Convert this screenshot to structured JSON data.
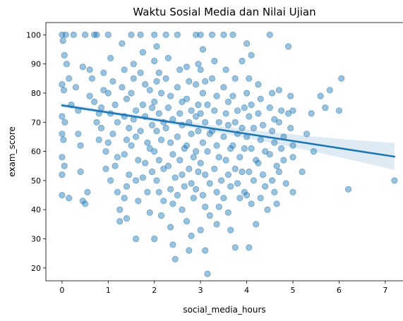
{
  "chart_data": {
    "type": "scatter",
    "title": "Waktu Sosial Media dan Nilai Ujian",
    "xlabel": "social_media_hours",
    "ylabel": "exam_score",
    "xlim": [
      -0.35,
      7.4
    ],
    "ylim": [
      15.6,
      104.2
    ],
    "xticks": [
      0,
      1,
      2,
      3,
      4,
      5,
      6,
      7
    ],
    "yticks": [
      20,
      30,
      40,
      50,
      60,
      70,
      80,
      90,
      100
    ],
    "grid": false,
    "legend": "none",
    "point_color": "#1f77b4",
    "point_opacity": 0.45,
    "point_count_approx": 1000,
    "regression": {
      "color": "#1f77b4",
      "x": [
        0.0,
        7.2
      ],
      "y": [
        75.8,
        58.2
      ],
      "ci_upper": [
        77.2,
        62.2
      ],
      "ci_lower": [
        74.5,
        54.3
      ]
    },
    "points": [
      [
        0.0,
        100
      ],
      [
        0.02,
        98
      ],
      [
        0.05,
        93
      ],
      [
        0.08,
        100
      ],
      [
        0.0,
        83
      ],
      [
        0.04,
        81
      ],
      [
        0.0,
        72
      ],
      [
        0.06,
        70
      ],
      [
        0.0,
        66
      ],
      [
        0.03,
        64
      ],
      [
        0.0,
        58
      ],
      [
        0.05,
        55
      ],
      [
        0.0,
        52
      ],
      [
        0.0,
        45
      ],
      [
        0.15,
        44
      ],
      [
        0.1,
        90
      ],
      [
        0.15,
        85
      ],
      [
        0.2,
        76
      ],
      [
        0.25,
        100
      ],
      [
        0.3,
        82
      ],
      [
        0.35,
        74
      ],
      [
        0.35,
        66
      ],
      [
        0.4,
        62
      ],
      [
        0.4,
        53
      ],
      [
        0.45,
        89
      ],
      [
        0.5,
        100
      ],
      [
        0.45,
        43
      ],
      [
        0.55,
        46
      ],
      [
        0.5,
        42
      ],
      [
        0.6,
        88
      ],
      [
        0.65,
        85
      ],
      [
        0.6,
        79
      ],
      [
        0.7,
        77
      ],
      [
        0.7,
        100
      ],
      [
        0.75,
        70
      ],
      [
        0.8,
        73
      ],
      [
        0.8,
        64
      ],
      [
        0.85,
        68
      ],
      [
        0.85,
        75
      ],
      [
        0.9,
        81
      ],
      [
        0.9,
        87
      ],
      [
        0.95,
        60
      ],
      [
        0.95,
        54
      ],
      [
        0.75,
        100
      ],
      [
        1.0,
        100
      ],
      [
        1.05,
        92
      ],
      [
        1.1,
        84
      ],
      [
        1.0,
        80
      ],
      [
        1.15,
        76
      ],
      [
        1.05,
        73
      ],
      [
        1.2,
        70
      ],
      [
        1.1,
        66
      ],
      [
        1.0,
        63
      ],
      [
        1.2,
        58
      ],
      [
        1.15,
        55
      ],
      [
        1.05,
        50
      ],
      [
        1.2,
        46
      ],
      [
        1.25,
        40
      ],
      [
        1.25,
        36
      ],
      [
        1.3,
        97
      ],
      [
        1.35,
        88
      ],
      [
        1.3,
        82
      ],
      [
        1.4,
        78
      ],
      [
        1.35,
        72
      ],
      [
        1.45,
        68
      ],
      [
        1.4,
        64
      ],
      [
        1.35,
        59
      ],
      [
        1.45,
        52
      ],
      [
        1.4,
        48
      ],
      [
        1.35,
        44
      ],
      [
        1.4,
        37
      ],
      [
        1.5,
        100
      ],
      [
        1.55,
        90
      ],
      [
        1.55,
        85
      ],
      [
        1.5,
        80
      ],
      [
        1.6,
        74
      ],
      [
        1.55,
        71
      ],
      [
        1.6,
        65
      ],
      [
        1.5,
        62
      ],
      [
        1.65,
        57
      ],
      [
        1.6,
        50
      ],
      [
        1.65,
        43
      ],
      [
        1.6,
        30
      ],
      [
        1.7,
        100
      ],
      [
        1.75,
        94
      ],
      [
        1.7,
        87
      ],
      [
        1.8,
        83
      ],
      [
        1.75,
        76
      ],
      [
        1.8,
        72
      ],
      [
        1.7,
        67
      ],
      [
        1.85,
        63
      ],
      [
        1.8,
        56
      ],
      [
        1.75,
        51
      ],
      [
        1.85,
        46
      ],
      [
        1.9,
        39
      ],
      [
        1.9,
        81
      ],
      [
        1.95,
        75
      ],
      [
        1.95,
        69
      ],
      [
        1.9,
        61
      ],
      [
        1.95,
        53
      ],
      [
        2.0,
        100
      ],
      [
        2.05,
        96
      ],
      [
        2.0,
        91
      ],
      [
        2.1,
        87
      ],
      [
        2.05,
        84
      ],
      [
        2.15,
        80
      ],
      [
        2.0,
        77
      ],
      [
        2.1,
        73
      ],
      [
        2.2,
        70
      ],
      [
        2.05,
        67
      ],
      [
        2.15,
        64
      ],
      [
        2.0,
        60
      ],
      [
        2.1,
        57
      ],
      [
        2.2,
        54
      ],
      [
        2.05,
        50
      ],
      [
        2.1,
        46
      ],
      [
        2.2,
        43
      ],
      [
        2.0,
        30
      ],
      [
        2.15,
        38
      ],
      [
        2.25,
        100
      ],
      [
        2.3,
        92
      ],
      [
        2.25,
        85
      ],
      [
        2.35,
        79
      ],
      [
        2.3,
        75
      ],
      [
        2.4,
        71
      ],
      [
        2.25,
        68
      ],
      [
        2.35,
        63
      ],
      [
        2.4,
        59
      ],
      [
        2.3,
        55
      ],
      [
        2.45,
        51
      ],
      [
        2.35,
        47
      ],
      [
        2.4,
        42
      ],
      [
        2.35,
        34
      ],
      [
        2.4,
        28
      ],
      [
        2.45,
        23
      ],
      [
        2.5,
        100
      ],
      [
        2.55,
        88
      ],
      [
        2.5,
        82
      ],
      [
        2.6,
        77
      ],
      [
        2.55,
        73
      ],
      [
        2.6,
        69
      ],
      [
        2.5,
        65
      ],
      [
        2.65,
        61
      ],
      [
        2.55,
        57
      ],
      [
        2.6,
        52
      ],
      [
        2.65,
        48
      ],
      [
        2.5,
        45
      ],
      [
        2.6,
        40
      ],
      [
        2.7,
        89
      ],
      [
        2.75,
        84
      ],
      [
        2.7,
        78
      ],
      [
        2.8,
        74
      ],
      [
        2.75,
        70
      ],
      [
        2.8,
        66
      ],
      [
        2.7,
        62
      ],
      [
        2.85,
        58
      ],
      [
        2.75,
        54
      ],
      [
        2.8,
        49
      ],
      [
        2.85,
        44
      ],
      [
        2.7,
        36
      ],
      [
        2.8,
        31
      ],
      [
        2.75,
        26
      ],
      [
        2.9,
        100
      ],
      [
        2.95,
        90
      ],
      [
        2.9,
        83
      ],
      [
        2.95,
        76
      ],
      [
        2.9,
        72
      ],
      [
        2.95,
        67
      ],
      [
        2.9,
        60
      ],
      [
        2.95,
        53
      ],
      [
        2.9,
        47
      ],
      [
        3.0,
        100
      ],
      [
        3.05,
        95
      ],
      [
        3.0,
        88
      ],
      [
        3.1,
        84
      ],
      [
        3.05,
        80
      ],
      [
        3.15,
        76
      ],
      [
        3.0,
        73
      ],
      [
        3.1,
        70
      ],
      [
        3.2,
        66
      ],
      [
        3.05,
        63
      ],
      [
        3.15,
        60
      ],
      [
        3.0,
        56
      ],
      [
        3.1,
        52
      ],
      [
        3.2,
        49
      ],
      [
        3.05,
        45
      ],
      [
        3.1,
        41
      ],
      [
        3.2,
        38
      ],
      [
        3.0,
        33
      ],
      [
        3.1,
        26
      ],
      [
        3.15,
        18
      ],
      [
        3.25,
        100
      ],
      [
        3.3,
        91
      ],
      [
        3.25,
        85
      ],
      [
        3.35,
        79
      ],
      [
        3.3,
        74
      ],
      [
        3.4,
        70
      ],
      [
        3.25,
        67
      ],
      [
        3.35,
        62
      ],
      [
        3.4,
        58
      ],
      [
        3.3,
        54
      ],
      [
        3.45,
        50
      ],
      [
        3.35,
        46
      ],
      [
        3.4,
        41
      ],
      [
        3.35,
        35
      ],
      [
        3.5,
        100
      ],
      [
        3.55,
        88
      ],
      [
        3.5,
        82
      ],
      [
        3.6,
        77
      ],
      [
        3.55,
        73
      ],
      [
        3.6,
        69
      ],
      [
        3.5,
        65
      ],
      [
        3.65,
        61
      ],
      [
        3.55,
        57
      ],
      [
        3.6,
        52
      ],
      [
        3.65,
        48
      ],
      [
        3.5,
        44
      ],
      [
        3.6,
        39
      ],
      [
        3.65,
        33
      ],
      [
        3.7,
        100
      ],
      [
        3.75,
        85
      ],
      [
        3.7,
        79
      ],
      [
        3.8,
        74
      ],
      [
        3.75,
        70
      ],
      [
        3.8,
        66
      ],
      [
        3.7,
        62
      ],
      [
        3.85,
        58
      ],
      [
        3.75,
        54
      ],
      [
        3.8,
        49
      ],
      [
        3.85,
        44
      ],
      [
        3.75,
        27
      ],
      [
        3.9,
        91
      ],
      [
        3.95,
        75
      ],
      [
        3.9,
        68
      ],
      [
        3.95,
        61
      ],
      [
        3.9,
        53
      ],
      [
        3.95,
        46
      ],
      [
        4.0,
        97
      ],
      [
        4.05,
        85
      ],
      [
        4.0,
        80
      ],
      [
        4.1,
        76
      ],
      [
        4.05,
        72
      ],
      [
        4.15,
        68
      ],
      [
        4.0,
        65
      ],
      [
        4.1,
        61
      ],
      [
        4.2,
        57
      ],
      [
        4.05,
        53
      ],
      [
        4.15,
        50
      ],
      [
        4.0,
        45
      ],
      [
        4.1,
        42
      ],
      [
        4.2,
        35
      ],
      [
        4.05,
        27
      ],
      [
        4.1,
        93
      ],
      [
        4.25,
        83
      ],
      [
        4.3,
        78
      ],
      [
        4.25,
        73
      ],
      [
        4.35,
        69
      ],
      [
        4.3,
        64
      ],
      [
        4.4,
        60
      ],
      [
        4.25,
        56
      ],
      [
        4.35,
        52
      ],
      [
        4.4,
        48
      ],
      [
        4.3,
        44
      ],
      [
        4.45,
        40
      ],
      [
        4.5,
        100
      ],
      [
        4.55,
        80
      ],
      [
        4.5,
        75
      ],
      [
        4.6,
        71
      ],
      [
        4.55,
        67
      ],
      [
        4.6,
        63
      ],
      [
        4.5,
        59
      ],
      [
        4.65,
        55
      ],
      [
        4.55,
        50
      ],
      [
        4.6,
        46
      ],
      [
        4.65,
        42
      ],
      [
        4.7,
        81
      ],
      [
        4.75,
        74
      ],
      [
        4.7,
        70
      ],
      [
        4.8,
        65
      ],
      [
        4.75,
        61
      ],
      [
        4.8,
        57
      ],
      [
        4.7,
        53
      ],
      [
        4.85,
        49
      ],
      [
        4.9,
        96
      ],
      [
        4.95,
        79
      ],
      [
        4.9,
        73
      ],
      [
        4.95,
        68
      ],
      [
        5.0,
        74
      ],
      [
        5.0,
        62
      ],
      [
        5.0,
        58
      ],
      [
        5.0,
        46
      ],
      [
        5.2,
        53
      ],
      [
        5.3,
        66
      ],
      [
        5.4,
        73
      ],
      [
        5.45,
        60
      ],
      [
        5.6,
        79
      ],
      [
        5.7,
        75
      ],
      [
        5.8,
        81
      ],
      [
        6.0,
        74
      ],
      [
        6.05,
        85
      ],
      [
        6.2,
        47
      ],
      [
        7.2,
        50
      ]
    ]
  }
}
